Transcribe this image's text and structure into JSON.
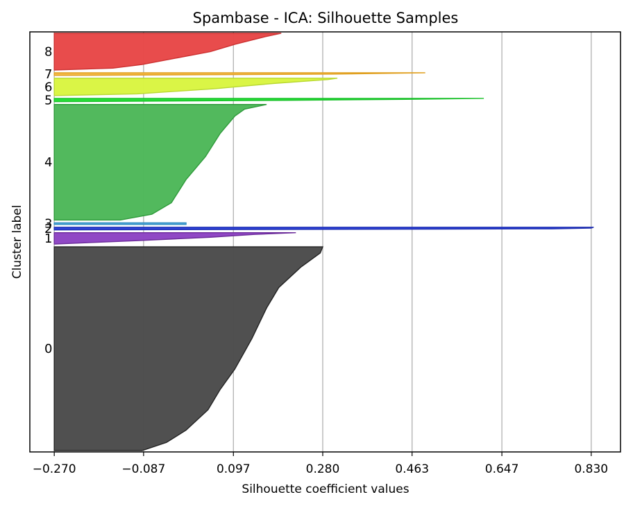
{
  "chart_data": {
    "type": "silhouette",
    "title": "Spambase - ICA: Silhouette Samples",
    "xlabel": "Silhouette coefficient values",
    "ylabel": "Cluster label",
    "xlim": [
      -0.32,
      0.89
    ],
    "xticks": [
      -0.27,
      -0.087,
      0.097,
      0.28,
      0.463,
      0.647,
      0.83
    ],
    "xtick_labels": [
      "−0.270",
      "−0.087",
      "0.097",
      "0.280",
      "0.463",
      "0.647",
      "0.830"
    ],
    "grid": "x",
    "baseline": -0.27,
    "clusters": [
      {
        "label": "0",
        "color": "#4d4d4d",
        "edge": "#222222",
        "size": 3050,
        "profile": [
          [
            0,
            0.28
          ],
          [
            0.03,
            0.275
          ],
          [
            0.1,
            0.235
          ],
          [
            0.2,
            0.19
          ],
          [
            0.3,
            0.165
          ],
          [
            0.45,
            0.135
          ],
          [
            0.6,
            0.1
          ],
          [
            0.7,
            0.07
          ],
          [
            0.8,
            0.045
          ],
          [
            0.9,
            0.0
          ],
          [
            0.96,
            -0.04
          ],
          [
            1.0,
            -0.09
          ]
        ]
      },
      {
        "label": "1",
        "color": "#8e44c4",
        "edge": "#6a2a99",
        "size": 170,
        "profile": [
          [
            0,
            0.225
          ],
          [
            0.15,
            0.14
          ],
          [
            0.4,
            0.05
          ],
          [
            0.7,
            -0.1
          ],
          [
            1.0,
            -0.27
          ]
        ]
      },
      {
        "label": "2",
        "color": "#2a3fd8",
        "edge": "#1f2fb0",
        "size": 40,
        "profile": [
          [
            0,
            0.835
          ],
          [
            0.3,
            0.83
          ],
          [
            0.6,
            0.75
          ],
          [
            1.0,
            -0.27
          ]
        ]
      },
      {
        "label": "3",
        "color": "#4aa6d8",
        "edge": "#2f8cc0",
        "size": 25,
        "profile": [
          [
            0,
            0.0
          ],
          [
            1.0,
            0.0
          ]
        ]
      },
      {
        "label": "4",
        "color": "#4fb85a",
        "edge": "#2e9a3a",
        "size": 1730,
        "profile": [
          [
            0,
            0.165
          ],
          [
            0.04,
            0.12
          ],
          [
            0.1,
            0.1
          ],
          [
            0.25,
            0.07
          ],
          [
            0.45,
            0.04
          ],
          [
            0.65,
            0.0
          ],
          [
            0.85,
            -0.03
          ],
          [
            0.95,
            -0.07
          ],
          [
            1.0,
            -0.135
          ]
        ]
      },
      {
        "label": "5",
        "color": "#22dd33",
        "edge": "#18c028",
        "size": 50,
        "profile": [
          [
            0,
            0.61
          ],
          [
            0.3,
            0.45
          ],
          [
            0.6,
            0.2
          ],
          [
            1.0,
            -0.27
          ]
        ]
      },
      {
        "label": "6",
        "color": "#d9f542",
        "edge": "#b8d830",
        "size": 260,
        "profile": [
          [
            0,
            0.31
          ],
          [
            0.08,
            0.29
          ],
          [
            0.3,
            0.18
          ],
          [
            0.6,
            0.06
          ],
          [
            0.9,
            -0.1
          ],
          [
            1.0,
            -0.27
          ]
        ]
      },
      {
        "label": "7",
        "color": "#f5b942",
        "edge": "#e0a020",
        "size": 40,
        "profile": [
          [
            0,
            0.49
          ],
          [
            0.5,
            0.3
          ],
          [
            1.0,
            -0.27
          ]
        ]
      },
      {
        "label": "8",
        "color": "#e84848",
        "edge": "#cc3030",
        "size": 550,
        "profile": [
          [
            0,
            0.195
          ],
          [
            0.1,
            0.16
          ],
          [
            0.3,
            0.1
          ],
          [
            0.5,
            0.05
          ],
          [
            0.7,
            -0.03
          ],
          [
            0.85,
            -0.09
          ],
          [
            0.95,
            -0.15
          ],
          [
            1.0,
            -0.27
          ]
        ]
      }
    ]
  }
}
